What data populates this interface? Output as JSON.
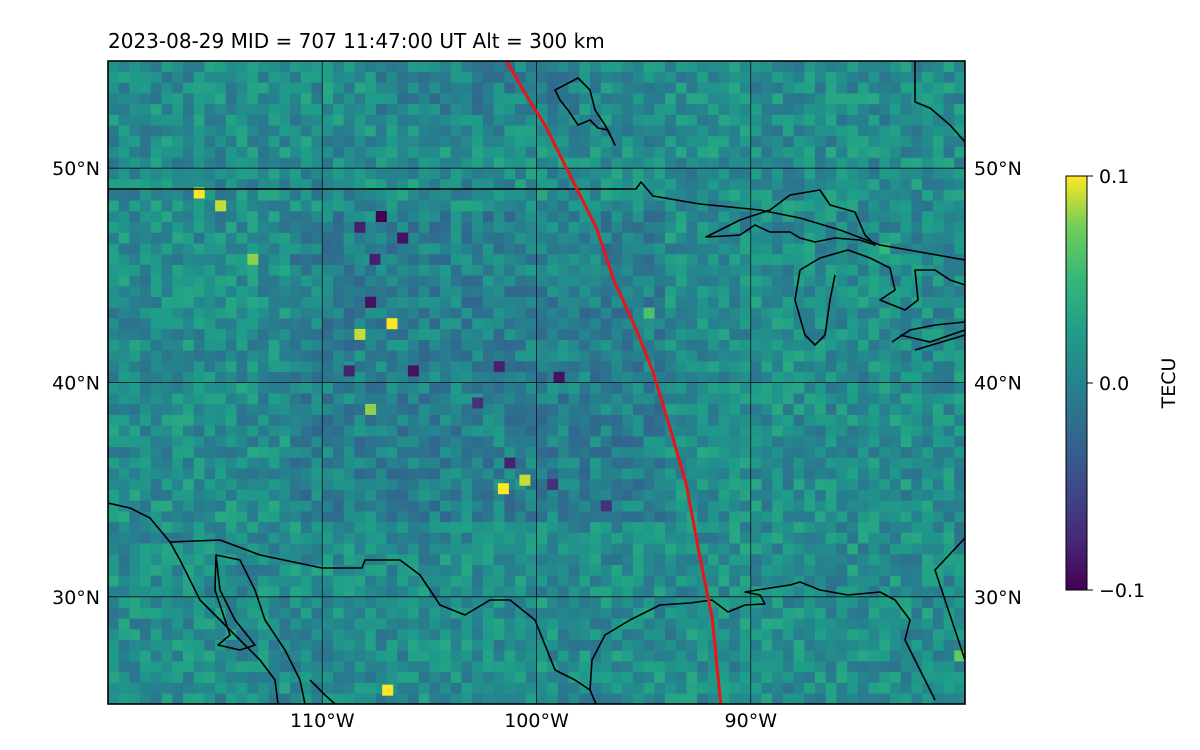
{
  "title": "2023-08-29  MID = 707    11:47:00  UT  Alt = 300 km",
  "map": {
    "lon_range": [
      -120,
      -80
    ],
    "lat_range": [
      25,
      55
    ],
    "lat_ticks": [
      {
        "value": 50,
        "label": "50°N"
      },
      {
        "value": 40,
        "label": "40°N"
      },
      {
        "value": 30,
        "label": "30°N"
      }
    ],
    "lon_ticks": [
      {
        "value": -110,
        "label": "110°W"
      },
      {
        "value": -100,
        "label": "100°W"
      },
      {
        "value": -90,
        "label": "90°W"
      }
    ],
    "background_color": "#2a8a8a",
    "coastline_color": "#000000",
    "gridline_color": "#000000",
    "terminator_color": "#e8161a"
  },
  "colorbar": {
    "label": "TECU",
    "min": -0.1,
    "max": 0.1,
    "ticks": [
      {
        "value": 0.1,
        "label": "0.1"
      },
      {
        "value": 0.0,
        "label": "0.0"
      },
      {
        "value": -0.1,
        "label": "−0.1"
      }
    ],
    "colormap": "viridis"
  },
  "chart_data": {
    "type": "heatmap",
    "title": "2023-08-29  MID = 707    11:47:00  UT  Alt = 300 km",
    "xlabel": "",
    "ylabel": "",
    "x_ticks": [
      "110°W",
      "100°W",
      "90°W"
    ],
    "y_ticks": [
      "50°N",
      "40°N",
      "30°N"
    ],
    "colorbar_label": "TECU",
    "clim": [
      -0.1,
      0.1
    ],
    "grid": true,
    "terminator_line": [
      {
        "lon": -101.4,
        "lat": 55.0
      },
      {
        "lon": -100.6,
        "lat": 53.6
      },
      {
        "lon": -99.6,
        "lat": 52.0
      },
      {
        "lon": -98.6,
        "lat": 50.0
      },
      {
        "lon": -97.2,
        "lat": 47.2
      },
      {
        "lon": -96.4,
        "lat": 44.8
      },
      {
        "lon": -95.4,
        "lat": 42.6
      },
      {
        "lon": -94.6,
        "lat": 40.6
      },
      {
        "lon": -93.8,
        "lat": 38.0
      },
      {
        "lon": -93.0,
        "lat": 35.2
      },
      {
        "lon": -92.4,
        "lat": 32.0
      },
      {
        "lon": -91.8,
        "lat": 29.0
      },
      {
        "lon": -91.4,
        "lat": 25.0
      }
    ],
    "features": [
      {
        "lon": -108.0,
        "lat": 43.5,
        "tec": -0.09
      },
      {
        "lon": -107.5,
        "lat": 47.5,
        "tec": -0.1
      },
      {
        "lon": -108.5,
        "lat": 47.0,
        "tec": -0.08
      },
      {
        "lon": -106.5,
        "lat": 46.5,
        "tec": -0.09
      },
      {
        "lon": -107.8,
        "lat": 45.5,
        "tec": -0.08
      },
      {
        "lon": -107.0,
        "lat": 42.5,
        "tec": 0.1
      },
      {
        "lon": -108.5,
        "lat": 42.0,
        "tec": 0.09
      },
      {
        "lon": -109.0,
        "lat": 40.3,
        "tec": -0.08
      },
      {
        "lon": -106.0,
        "lat": 40.3,
        "tec": -0.09
      },
      {
        "lon": -102.0,
        "lat": 40.5,
        "tec": -0.08
      },
      {
        "lon": -99.2,
        "lat": 40.0,
        "tec": -0.09
      },
      {
        "lon": -101.5,
        "lat": 36.0,
        "tec": -0.08
      },
      {
        "lon": -100.8,
        "lat": 35.2,
        "tec": 0.09
      },
      {
        "lon": -101.8,
        "lat": 34.8,
        "tec": 0.1
      },
      {
        "lon": -99.5,
        "lat": 35.0,
        "tec": -0.07
      },
      {
        "lon": -97.0,
        "lat": 34.0,
        "tec": -0.07
      },
      {
        "lon": -116.0,
        "lat": 48.6,
        "tec": 0.1
      },
      {
        "lon": -115.0,
        "lat": 48.0,
        "tec": 0.09
      },
      {
        "lon": -113.5,
        "lat": 45.5,
        "tec": 0.08
      },
      {
        "lon": -107.2,
        "lat": 25.4,
        "tec": 0.1
      },
      {
        "lon": -108.0,
        "lat": 38.5,
        "tec": 0.08
      },
      {
        "lon": -103.0,
        "lat": 38.8,
        "tec": -0.07
      },
      {
        "lon": -95.0,
        "lat": 43.0,
        "tec": 0.06
      },
      {
        "lon": -84.0,
        "lat": 46.0,
        "tec": 0.05
      },
      {
        "lon": -80.5,
        "lat": 27.0,
        "tec": 0.07
      }
    ]
  }
}
